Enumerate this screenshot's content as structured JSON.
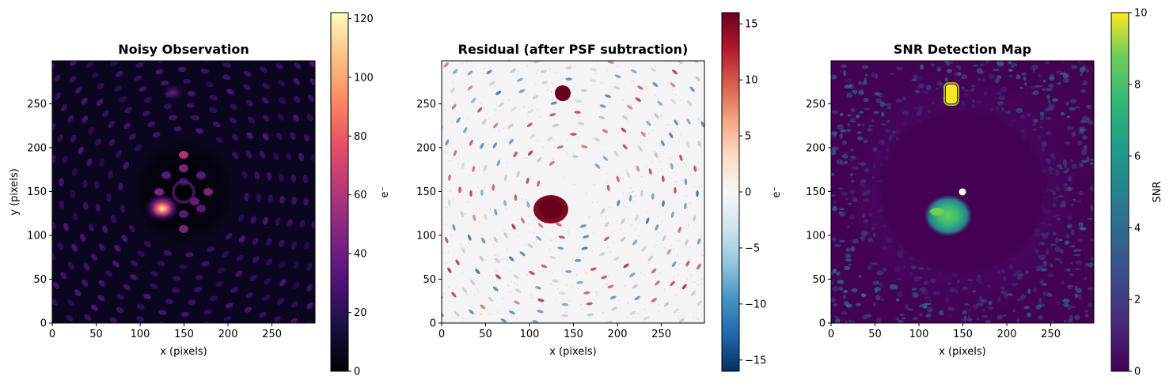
{
  "figure": {
    "panels": [
      {
        "title": "Noisy Observation",
        "xlabel": "x (pixels)",
        "ylabel": "y (pixels)",
        "cbar_label": "e⁻"
      },
      {
        "title": "Residual (after PSF subtraction)",
        "xlabel": "x (pixels)",
        "ylabel": "",
        "cbar_label": "e⁻"
      },
      {
        "title": "SNR Detection Map",
        "xlabel": "x (pixels)",
        "ylabel": "",
        "cbar_label": "SNR"
      }
    ]
  },
  "chart_data": [
    {
      "type": "heatmap",
      "title": "Noisy Observation",
      "xlabel": "x (pixels)",
      "ylabel": "y (pixels)",
      "xlim": [
        0,
        299
      ],
      "ylim": [
        0,
        299
      ],
      "xticks": [
        0,
        50,
        100,
        150,
        200,
        250
      ],
      "yticks": [
        0,
        50,
        100,
        150,
        200,
        250
      ],
      "colormap": "magma",
      "colorbar": {
        "label": "e⁻",
        "range": [
          0,
          122
        ],
        "ticks": [
          0,
          20,
          40,
          60,
          80,
          100,
          120
        ]
      },
      "features": {
        "star_center": [
          150,
          150
        ],
        "bright_companion": [
          125,
          130
        ],
        "faint_companion": [
          138,
          262
        ]
      }
    },
    {
      "type": "heatmap",
      "title": "Residual (after PSF subtraction)",
      "xlabel": "x (pixels)",
      "xlim": [
        0,
        299
      ],
      "ylim": [
        0,
        299
      ],
      "xticks": [
        0,
        50,
        100,
        150,
        200,
        250
      ],
      "yticks": [
        0,
        50,
        100,
        150,
        200,
        250
      ],
      "colormap": "RdBu_r",
      "colorbar": {
        "label": "e⁻",
        "range": [
          -16,
          16
        ],
        "ticks": [
          -15,
          -10,
          -5,
          0,
          5,
          10,
          15
        ]
      },
      "features": {
        "bright_companion": [
          122,
          128
        ],
        "faint_companion": [
          138,
          262
        ]
      }
    },
    {
      "type": "heatmap",
      "title": "SNR Detection Map",
      "xlabel": "x (pixels)",
      "xlim": [
        0,
        299
      ],
      "ylim": [
        0,
        299
      ],
      "xticks": [
        0,
        50,
        100,
        150,
        200,
        250
      ],
      "yticks": [
        0,
        50,
        100,
        150,
        200,
        250
      ],
      "colormap": "viridis",
      "colorbar": {
        "label": "SNR",
        "range": [
          0,
          10
        ],
        "ticks": [
          0,
          2,
          4,
          6,
          8,
          10
        ]
      },
      "features": {
        "star_mask": [
          150,
          150
        ],
        "detection_1": [
          138,
          264
        ],
        "detection_2": [
          120,
          122
        ]
      }
    }
  ]
}
